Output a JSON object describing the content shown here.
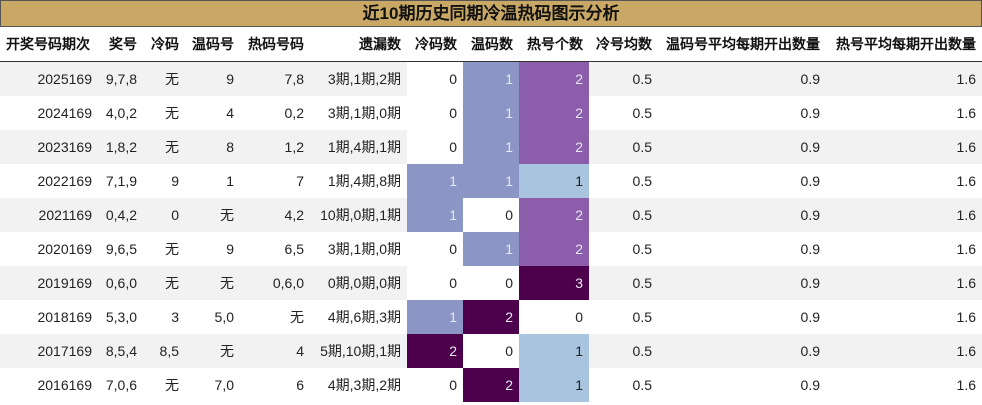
{
  "header": {
    "title": "近10期历史同期冷温热码图示分析"
  },
  "table": {
    "columns": [
      "开奖号码期次",
      "奖号",
      "冷码",
      "温码号",
      "热码号码",
      "遗漏数",
      "冷码数",
      "温码数",
      "热号个数",
      "冷号均数",
      "温码号平均每期开出数量",
      "热号平均每期开出数量"
    ],
    "rows": [
      [
        2025169,
        "9,7,8",
        "无",
        "9",
        "7,8",
        "3期,1期,2期",
        0,
        1,
        2,
        0.5,
        0.9,
        1.6
      ],
      [
        2024169,
        "4,0,2",
        "无",
        "4",
        "0,2",
        "3期,1期,0期",
        0,
        1,
        2,
        0.5,
        0.9,
        1.6
      ],
      [
        2023169,
        "1,8,2",
        "无",
        "8",
        "1,2",
        "1期,4期,1期",
        0,
        1,
        2,
        0.5,
        0.9,
        1.6
      ],
      [
        2022169,
        "7,1,9",
        "9",
        "1",
        "7",
        "1期,4期,8期",
        1,
        1,
        1,
        0.5,
        0.9,
        1.6
      ],
      [
        2021169,
        "0,4,2",
        "0",
        "无",
        "4,2",
        "10期,0期,1期",
        1,
        0,
        2,
        0.5,
        0.9,
        1.6
      ],
      [
        2020169,
        "9,6,5",
        "无",
        "9",
        "6,5",
        "3期,1期,0期",
        0,
        1,
        2,
        0.5,
        0.9,
        1.6
      ],
      [
        2019169,
        "0,6,0",
        "无",
        "无",
        "0,6,0",
        "0期,0期,0期",
        0,
        0,
        3,
        0.5,
        0.9,
        1.6
      ],
      [
        2018169,
        "5,3,0",
        "3",
        "5,0",
        "无",
        "4期,6期,3期",
        1,
        2,
        0,
        0.5,
        0.9,
        1.6
      ],
      [
        2017169,
        "8,5,4",
        "8,5",
        "无",
        "4",
        "5期,10期,1期",
        2,
        0,
        1,
        0.5,
        0.9,
        1.6
      ],
      [
        2016169,
        "7,0,6",
        "无",
        "7,0",
        "6",
        "4期,3期,2期",
        0,
        2,
        1,
        0.5,
        0.9,
        1.6
      ]
    ]
  }
}
